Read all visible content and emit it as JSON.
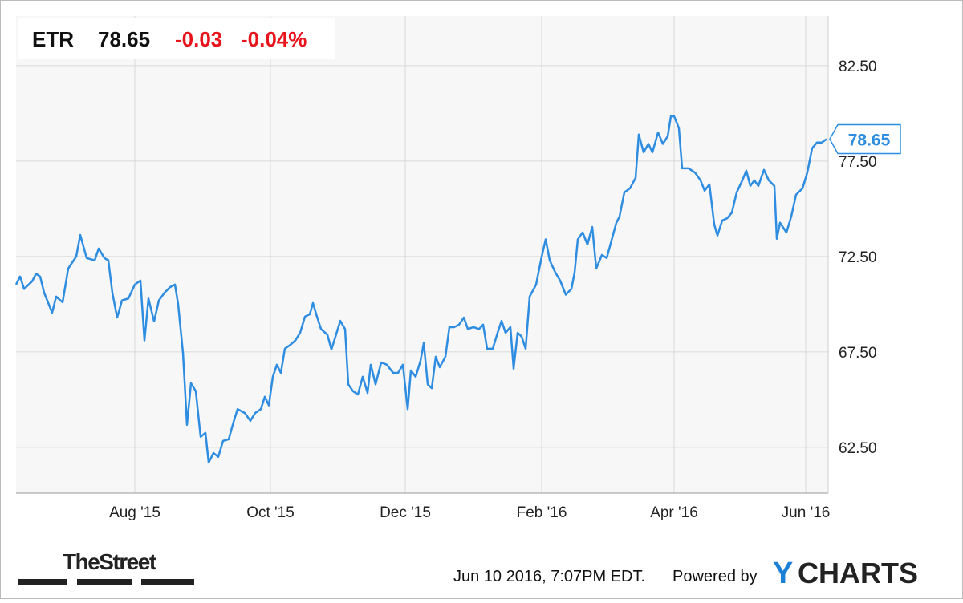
{
  "chart_data": {
    "type": "line",
    "header": {
      "ticker": "ETR",
      "price": "78.65",
      "change": "-0.03",
      "change_pct": "-0.04%"
    },
    "x": [
      0,
      1.25,
      2.5,
      5,
      6.25,
      7.5,
      8.75,
      11.25,
      12.5,
      14.5,
      16.25,
      18.75,
      20,
      22,
      24.5,
      25.75,
      27.5,
      28.75,
      30,
      31.5,
      33,
      35,
      37,
      38.75,
      40,
      41.25,
      43,
      44.5,
      46.25,
      48,
      49.5,
      50.5,
      52,
      53.25,
      54.5,
      56,
      57.5,
      59,
      60,
      61.5,
      63,
      64.5,
      66.25,
      67.5,
      69,
      71.25,
      73,
      74.5,
      76.25,
      77.5,
      78.75,
      80,
      81.25,
      82.5,
      83.75,
      85.5,
      87,
      88.5,
      90,
      91.5,
      92.5,
      93.75,
      95,
      97,
      98.25,
      99.5,
      101,
      102.5,
      103.5,
      105,
      106.5,
      108,
      109.5,
      110.5,
      112,
      113.75,
      115.5,
      117.5,
      119,
      120.5,
      122,
      123,
      124.5,
      126,
      127,
      128.25,
      129.5,
      130.75,
      132,
      133.75,
      135,
      136.5,
      138,
      139.5,
      140.75,
      142.5,
      144.25,
      145.5,
      146.75,
      148.5,
      150,
      151.25,
      152.5,
      154,
      155,
      156.25,
      157.5,
      158.75,
      160,
      162,
      163.75,
      165,
      166.25,
      168,
      169.5,
      171.25,
      173,
      174,
      175,
      176.5,
      178,
      179.5,
      180.75,
      182.5,
      184,
      185.5,
      187,
      188,
      189.5,
      191.25,
      193,
      194,
      195.5,
      197,
      198.25,
      200,
      201.5,
      203,
      204,
      205,
      206.5,
      207.5,
      209.5,
      211.5,
      213.25,
      214.5,
      216,
      217.5,
      218.5,
      220,
      221.5,
      223,
      224.5,
      226.25,
      227.5,
      228.75,
      230,
      231.25,
      233,
      234.5,
      236.25,
      237,
      238,
      240,
      241.5,
      243,
      245,
      246.5,
      248,
      249.5,
      251,
      252.5
    ],
    "series": [
      {
        "name": "ETR",
        "color": "#2e8de0",
        "values": [
          71.03,
          71.45,
          70.8,
          71.2,
          71.6,
          71.45,
          70.6,
          69.56,
          70.4,
          70.1,
          71.87,
          72.5,
          73.63,
          72.42,
          72.3,
          72.92,
          72.42,
          72.3,
          70.6,
          69.3,
          70.2,
          70.3,
          71.03,
          71.24,
          68.1,
          70.3,
          69.1,
          70.2,
          70.6,
          70.9,
          71.03,
          70.0,
          67.46,
          63.68,
          65.86,
          65.44,
          63.05,
          63.26,
          61.7,
          62.2,
          62.0,
          62.84,
          62.92,
          63.68,
          64.5,
          64.3,
          63.89,
          64.3,
          64.5,
          65.15,
          64.7,
          66.2,
          66.83,
          66.4,
          67.67,
          67.88,
          68.1,
          68.5,
          69.35,
          69.47,
          70.06,
          69.35,
          68.7,
          68.4,
          67.63,
          68.3,
          69.13,
          68.7,
          65.8,
          65.44,
          65.27,
          66.2,
          65.35,
          66.83,
          65.8,
          66.95,
          66.83,
          66.4,
          66.4,
          66.83,
          64.5,
          66.53,
          66.2,
          67.04,
          67.96,
          65.8,
          65.6,
          67.25,
          66.7,
          67.25,
          68.8,
          68.8,
          68.93,
          69.3,
          68.7,
          68.8,
          68.7,
          68.93,
          67.67,
          67.67,
          68.5,
          69.13,
          68.5,
          68.8,
          66.62,
          68.5,
          68.3,
          67.67,
          70.4,
          71.03,
          72.5,
          73.4,
          72.3,
          71.66,
          71.24,
          70.5,
          70.8,
          71.66,
          73.4,
          73.76,
          73.13,
          74.05,
          71.87,
          72.58,
          72.42,
          73.34,
          74.27,
          74.6,
          75.86,
          76.07,
          76.62,
          78.89,
          77.96,
          78.4,
          77.96,
          79.0,
          78.4,
          78.8,
          79.85,
          79.85,
          79.22,
          77.12,
          77.12,
          76.9,
          76.49,
          75.95,
          76.28,
          74.18,
          73.6,
          74.39,
          74.5,
          74.8,
          75.86,
          76.49,
          77.0,
          76.2,
          76.49,
          76.2,
          77.04,
          76.49,
          76.2,
          73.43,
          74.27,
          73.76,
          74.6,
          75.74,
          76.07,
          76.9,
          78.17,
          78.47,
          78.47,
          78.65
        ]
      }
    ],
    "xlim": [
      0,
      253
    ],
    "xticks": [
      {
        "value": 37,
        "label": "Aug '15"
      },
      {
        "value": 79.25,
        "label": "Oct '15"
      },
      {
        "value": 121.25,
        "label": "Dec '15"
      },
      {
        "value": 163.75,
        "label": "Feb '16"
      },
      {
        "value": 205,
        "label": "Apr '16"
      },
      {
        "value": 246,
        "label": "Jun '16"
      }
    ],
    "ylim": [
      60.1,
      85.1
    ],
    "yticks": [
      {
        "value": 62.5,
        "label": "62.50"
      },
      {
        "value": 67.5,
        "label": "67.50"
      },
      {
        "value": 72.5,
        "label": "72.50"
      },
      {
        "value": 77.5,
        "label": "77.50"
      },
      {
        "value": 82.5,
        "label": "82.50"
      }
    ],
    "grid": true,
    "footer": {
      "brand": "TheStreet",
      "timestamp": "Jun 10 2016, 7:07PM EDT.",
      "powered": "Powered by",
      "logo_y": "Y",
      "logo_rest": "CHARTS"
    }
  }
}
